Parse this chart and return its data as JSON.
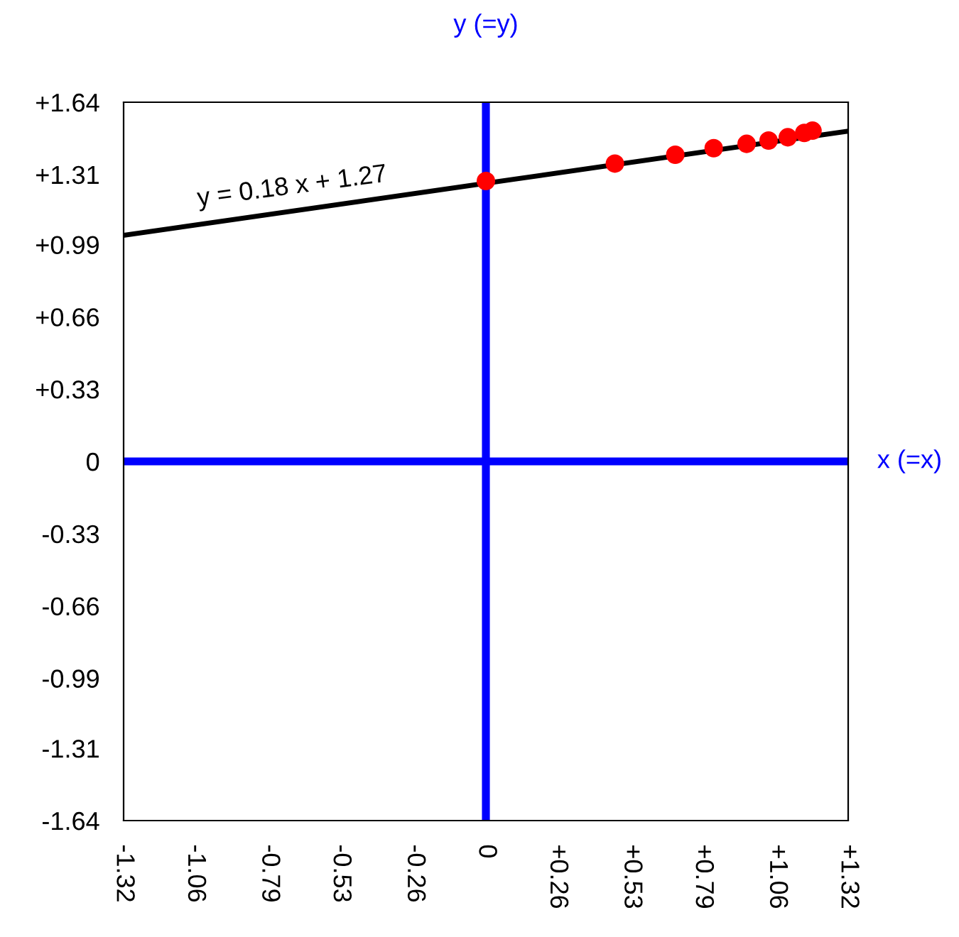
{
  "chart_data": {
    "type": "scatter",
    "series": [
      {
        "type": "line",
        "color": "#000000",
        "marker": "none",
        "x": [
          -1.32,
          1.32
        ],
        "values": [
          1.032,
          1.508
        ]
      },
      {
        "color": "#ff0000",
        "marker": "circle",
        "x": [
          0,
          0.47,
          0.69,
          0.83,
          0.95,
          1.03,
          1.1,
          1.16,
          1.19
        ],
        "values": [
          1.28,
          1.36,
          1.4,
          1.43,
          1.45,
          1.465,
          1.48,
          1.5,
          1.51
        ]
      }
    ],
    "annotations": [
      {
        "text": "y = 0.18 x + 1.27",
        "x": -0.7,
        "y": 1.144
      }
    ],
    "ref_lines": [
      {
        "axis": "x",
        "value": 0,
        "color": "#0000ff",
        "label": "y (=y)"
      },
      {
        "axis": "y",
        "value": 0,
        "color": "#0000ff",
        "label": "x (=x)"
      }
    ],
    "xlim": [
      -1.32,
      1.32
    ],
    "ylim": [
      -1.64,
      1.64
    ],
    "xticks": [
      -1.32,
      -1.06,
      -0.79,
      -0.53,
      -0.26,
      0,
      {
        "value": 0.26,
        "label": "+0.26"
      },
      {
        "value": 0.53,
        "label": "+0.53"
      },
      {
        "value": 0.79,
        "label": "+0.79"
      },
      {
        "value": 1.06,
        "label": "+1.06"
      },
      {
        "value": 1.32,
        "label": "+1.32"
      }
    ],
    "yticks": [
      -1.64,
      -1.31,
      -0.99,
      -0.66,
      -0.33,
      0,
      {
        "value": 0.33,
        "label": "+0.33"
      },
      {
        "value": 0.66,
        "label": "+0.66"
      },
      {
        "value": 0.99,
        "label": "+0.99"
      },
      {
        "value": 1.31,
        "label": "+1.31"
      },
      {
        "value": 1.64,
        "label": "+1.64"
      }
    ],
    "grid": false,
    "legend": false
  }
}
